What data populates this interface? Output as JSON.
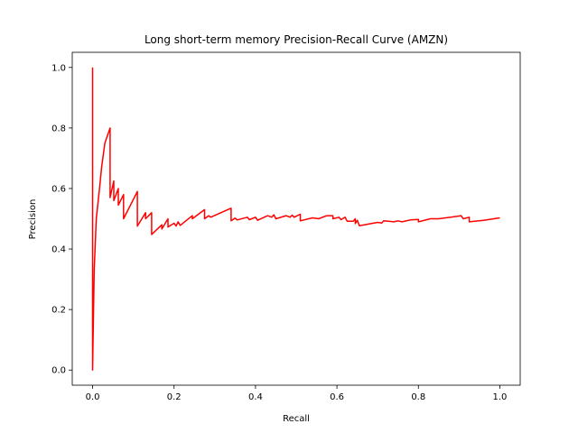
{
  "chart_data": {
    "type": "line",
    "title": "Long short-term memory Precision-Recall Curve (AMZN)",
    "xlabel": "Recall",
    "ylabel": "Precision",
    "xlim": [
      -0.05,
      1.05
    ],
    "ylim": [
      -0.05,
      1.05
    ],
    "x_ticks": [
      {
        "value": 0.0,
        "label": "0.0"
      },
      {
        "value": 0.2,
        "label": "0.2"
      },
      {
        "value": 0.4,
        "label": "0.4"
      },
      {
        "value": 0.6,
        "label": "0.6"
      },
      {
        "value": 0.8,
        "label": "0.8"
      },
      {
        "value": 1.0,
        "label": "1.0"
      }
    ],
    "y_ticks": [
      {
        "value": 0.0,
        "label": "0.0"
      },
      {
        "value": 0.2,
        "label": "0.2"
      },
      {
        "value": 0.4,
        "label": "0.4"
      },
      {
        "value": 0.6,
        "label": "0.6"
      },
      {
        "value": 0.8,
        "label": "0.8"
      },
      {
        "value": 1.0,
        "label": "1.0"
      }
    ],
    "grid": false,
    "series": [
      {
        "color": "#ff0000",
        "points": [
          [
            0.0,
            1.0
          ],
          [
            0.0,
            0.0
          ],
          [
            0.004,
            0.33
          ],
          [
            0.009,
            0.5
          ],
          [
            0.017,
            0.6
          ],
          [
            0.022,
            0.67
          ],
          [
            0.03,
            0.75
          ],
          [
            0.043,
            0.8
          ],
          [
            0.043,
            0.57
          ],
          [
            0.052,
            0.625
          ],
          [
            0.052,
            0.56
          ],
          [
            0.063,
            0.6
          ],
          [
            0.063,
            0.545
          ],
          [
            0.076,
            0.58
          ],
          [
            0.076,
            0.5
          ],
          [
            0.11,
            0.59
          ],
          [
            0.11,
            0.476
          ],
          [
            0.13,
            0.52
          ],
          [
            0.13,
            0.5
          ],
          [
            0.145,
            0.52
          ],
          [
            0.145,
            0.448
          ],
          [
            0.17,
            0.48
          ],
          [
            0.17,
            0.466
          ],
          [
            0.185,
            0.5
          ],
          [
            0.185,
            0.473
          ],
          [
            0.2,
            0.485
          ],
          [
            0.205,
            0.476
          ],
          [
            0.21,
            0.49
          ],
          [
            0.215,
            0.478
          ],
          [
            0.24,
            0.505
          ],
          [
            0.245,
            0.51
          ],
          [
            0.245,
            0.5
          ],
          [
            0.275,
            0.53
          ],
          [
            0.275,
            0.5
          ],
          [
            0.285,
            0.51
          ],
          [
            0.29,
            0.505
          ],
          [
            0.34,
            0.535
          ],
          [
            0.34,
            0.493
          ],
          [
            0.35,
            0.502
          ],
          [
            0.355,
            0.496
          ],
          [
            0.38,
            0.505
          ],
          [
            0.385,
            0.497
          ],
          [
            0.4,
            0.505
          ],
          [
            0.405,
            0.495
          ],
          [
            0.43,
            0.51
          ],
          [
            0.44,
            0.505
          ],
          [
            0.445,
            0.513
          ],
          [
            0.45,
            0.5
          ],
          [
            0.475,
            0.51
          ],
          [
            0.485,
            0.505
          ],
          [
            0.49,
            0.512
          ],
          [
            0.495,
            0.505
          ],
          [
            0.51,
            0.515
          ],
          [
            0.51,
            0.493
          ],
          [
            0.54,
            0.503
          ],
          [
            0.555,
            0.5
          ],
          [
            0.575,
            0.51
          ],
          [
            0.59,
            0.51
          ],
          [
            0.59,
            0.5
          ],
          [
            0.605,
            0.505
          ],
          [
            0.61,
            0.497
          ],
          [
            0.62,
            0.505
          ],
          [
            0.625,
            0.492
          ],
          [
            0.64,
            0.492
          ],
          [
            0.645,
            0.5
          ],
          [
            0.645,
            0.484
          ],
          [
            0.65,
            0.495
          ],
          [
            0.655,
            0.477
          ],
          [
            0.7,
            0.488
          ],
          [
            0.71,
            0.486
          ],
          [
            0.715,
            0.493
          ],
          [
            0.74,
            0.49
          ],
          [
            0.75,
            0.493
          ],
          [
            0.76,
            0.49
          ],
          [
            0.78,
            0.496
          ],
          [
            0.8,
            0.498
          ],
          [
            0.8,
            0.49
          ],
          [
            0.83,
            0.5
          ],
          [
            0.85,
            0.5
          ],
          [
            0.88,
            0.505
          ],
          [
            0.905,
            0.51
          ],
          [
            0.91,
            0.5
          ],
          [
            0.925,
            0.505
          ],
          [
            0.925,
            0.49
          ],
          [
            0.96,
            0.495
          ],
          [
            1.0,
            0.503
          ]
        ]
      }
    ]
  }
}
